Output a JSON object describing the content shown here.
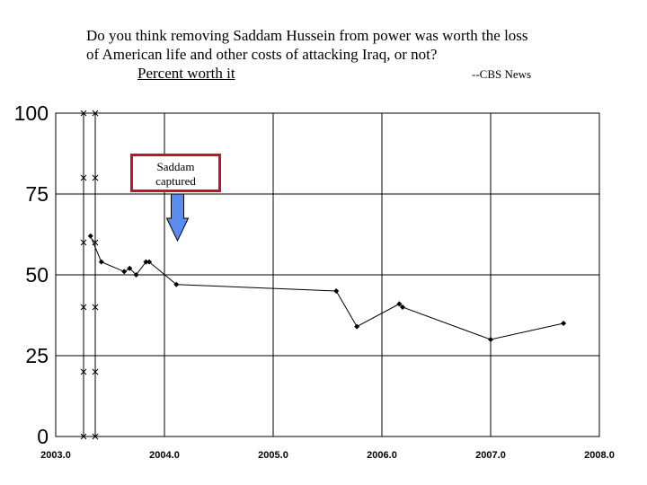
{
  "title": {
    "line1": "Do you think removing Saddam Hussein from power was worth the loss",
    "line2": "of American life and other costs of attacking Iraq, or not?"
  },
  "subtitle": "Percent worth it",
  "source": "--CBS News",
  "annotation": {
    "line1": "Saddam",
    "line2": "captured",
    "border_color": "#c8102e",
    "arrow_color": "#5b8def",
    "arrow_x": 2004.12
  },
  "chart_data": {
    "type": "line",
    "title": "Percent worth it",
    "xlabel": "",
    "ylabel": "",
    "xlim": [
      2003.0,
      2008.0
    ],
    "ylim": [
      0,
      100
    ],
    "x_ticks": [
      "2003.0",
      "2004.0",
      "2005.0",
      "2006.0",
      "2007.0",
      "2008.0"
    ],
    "y_ticks": [
      "0",
      "25",
      "50",
      "75",
      "100"
    ],
    "grid": true,
    "series": [
      {
        "x": [
          2003.32,
          2003.42,
          2003.63,
          2003.68,
          2003.74,
          2003.83,
          2003.86,
          2004.11,
          2005.58,
          2005.77,
          2006.16,
          2006.19,
          2007.0,
          2007.67
        ],
        "values": [
          62,
          54,
          51,
          52,
          50,
          54,
          54,
          47,
          45,
          34,
          41,
          40,
          30,
          35
        ]
      }
    ]
  }
}
